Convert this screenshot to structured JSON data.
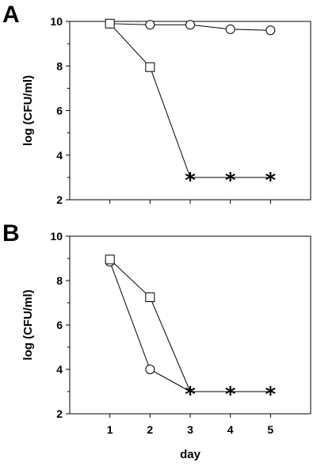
{
  "figure": {
    "x_axis_label": "day",
    "y_axis_label": "log (CFU/ml)"
  },
  "chart_data": [
    {
      "type": "line",
      "panel_label": "A",
      "ylabel": "log (CFU/ml)",
      "xlabel": "",
      "x": [
        1,
        2,
        3,
        4,
        5
      ],
      "xlim": [
        0,
        6
      ],
      "ylim": [
        2,
        10
      ],
      "yticks": [
        2,
        4,
        6,
        8,
        10
      ],
      "series": [
        {
          "marker": "circle",
          "points": [
            [
              1,
              9.9
            ],
            [
              2,
              9.85
            ],
            [
              3,
              9.85
            ],
            [
              4,
              9.65
            ],
            [
              5,
              9.6
            ]
          ]
        },
        {
          "marker": "square",
          "points": [
            [
              1,
              9.9
            ],
            [
              2,
              7.95
            ],
            [
              3,
              3.0
            ]
          ]
        }
      ],
      "below_detection_marker": "*",
      "below_detection_points": [
        [
          3,
          3.0
        ],
        [
          4,
          3.0
        ],
        [
          5,
          3.0
        ]
      ]
    },
    {
      "type": "line",
      "panel_label": "B",
      "ylabel": "log (CFU/ml)",
      "xlabel": "day",
      "x": [
        1,
        2,
        3,
        4,
        5
      ],
      "xlim": [
        0,
        6
      ],
      "ylim": [
        2,
        10
      ],
      "yticks": [
        2,
        4,
        6,
        8,
        10
      ],
      "xticks": [
        "1",
        "2",
        "3",
        "4",
        "5"
      ],
      "series": [
        {
          "marker": "circle",
          "points": [
            [
              1,
              8.85
            ],
            [
              2,
              4.0
            ],
            [
              3,
              3.0
            ]
          ]
        },
        {
          "marker": "square",
          "points": [
            [
              1,
              8.95
            ],
            [
              2,
              7.25
            ],
            [
              3,
              3.0
            ]
          ]
        }
      ],
      "below_detection_marker": "*",
      "below_detection_points": [
        [
          3,
          3.0
        ],
        [
          4,
          3.0
        ],
        [
          5,
          3.0
        ]
      ]
    }
  ]
}
